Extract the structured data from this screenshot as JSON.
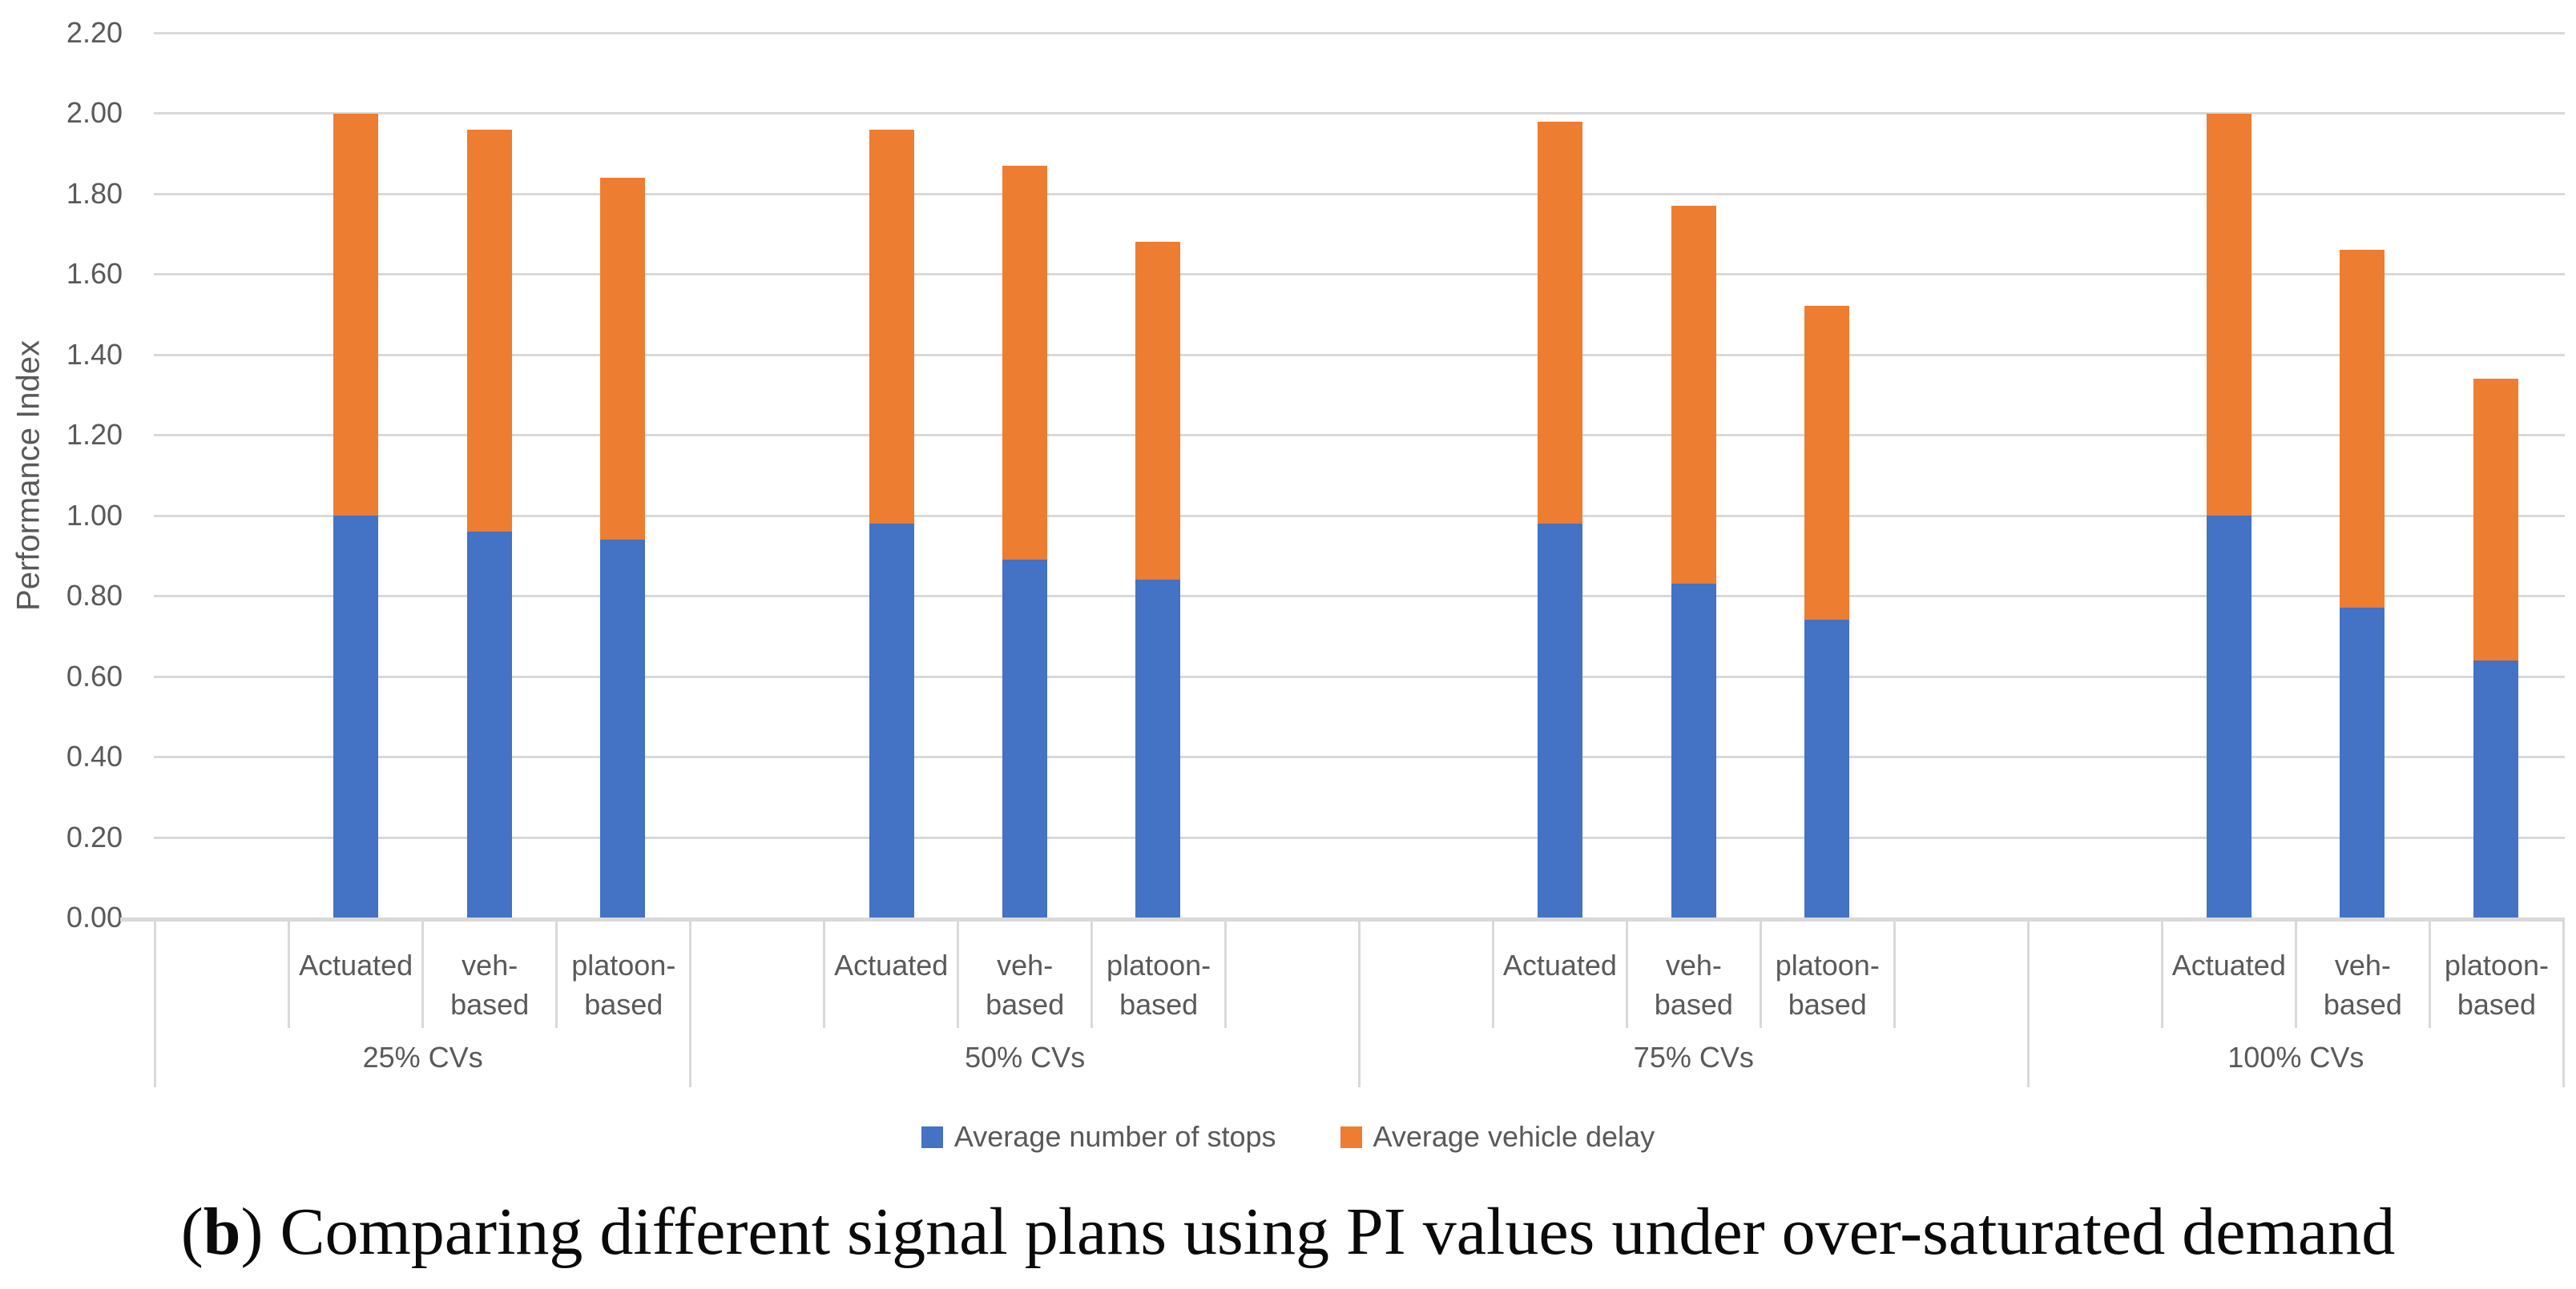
{
  "caption": {
    "open": "(",
    "bold": "b",
    "rest": ") Comparing different signal plans using PI values under over-saturated demand"
  },
  "chart_data": {
    "type": "bar",
    "stacked": true,
    "title": "",
    "xlabel": "",
    "ylabel": "Performance Index",
    "ylim": [
      0,
      2.2
    ],
    "ytick_step": 0.2,
    "ytick_labels": [
      "2.20",
      "2.00",
      "1.80",
      "1.60",
      "1.40",
      "1.20",
      "1.00",
      "0.80",
      "0.60",
      "0.40",
      "0.20",
      "0.00"
    ],
    "grid": true,
    "legend_position": "bottom",
    "colors": {
      "stops": "#4472C4",
      "delay": "#ED7D31",
      "gridline": "#D9D9D9",
      "axis_text": "#595959"
    },
    "groups": [
      {
        "label": "25% CVs",
        "categories": [
          {
            "label": "Actuated",
            "display": "Actuated"
          },
          {
            "label": "veh-based",
            "display": "veh-\nbased"
          },
          {
            "label": "platoon-based",
            "display": "platoon-\nbased"
          }
        ]
      },
      {
        "label": "50% CVs",
        "categories": [
          {
            "label": "Actuated",
            "display": "Actuated"
          },
          {
            "label": "veh-based",
            "display": "veh-\nbased"
          },
          {
            "label": "platoon-based",
            "display": "platoon-\nbased"
          }
        ]
      },
      {
        "label": "75% CVs",
        "categories": [
          {
            "label": "Actuated",
            "display": "Actuated"
          },
          {
            "label": "veh-based",
            "display": "veh-\nbased"
          },
          {
            "label": "platoon-based",
            "display": "platoon-\nbased"
          }
        ]
      },
      {
        "label": "100% CVs",
        "categories": [
          {
            "label": "Actuated",
            "display": "Actuated"
          },
          {
            "label": "veh-based",
            "display": "veh-\nbased"
          },
          {
            "label": "platoon-based",
            "display": "platoon-\nbased"
          }
        ]
      }
    ],
    "series": [
      {
        "name": "Average number of stops",
        "color": "#4472C4",
        "values": [
          [
            1.0,
            0.96,
            0.94
          ],
          [
            0.98,
            0.89,
            0.84
          ],
          [
            0.98,
            0.83,
            0.74
          ],
          [
            1.0,
            0.77,
            0.64
          ]
        ]
      },
      {
        "name": "Average vehicle delay",
        "color": "#ED7D31",
        "values": [
          [
            1.0,
            1.0,
            0.9
          ],
          [
            0.98,
            0.98,
            0.84
          ],
          [
            1.0,
            0.94,
            0.78
          ],
          [
            1.0,
            0.89,
            0.7
          ]
        ]
      }
    ],
    "stack_totals": [
      [
        2.0,
        1.96,
        1.84
      ],
      [
        1.96,
        1.87,
        1.68
      ],
      [
        1.98,
        1.77,
        1.52
      ],
      [
        2.0,
        1.66,
        1.34
      ]
    ]
  }
}
